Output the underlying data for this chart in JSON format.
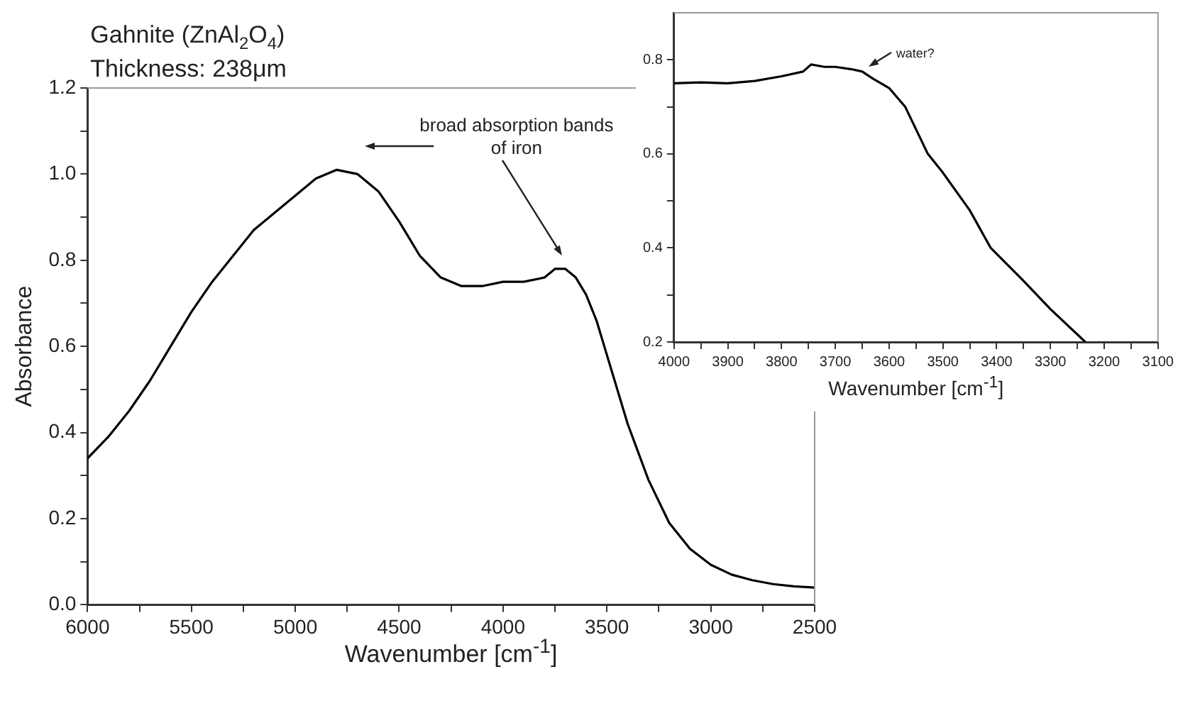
{
  "chart_data": [
    {
      "type": "line",
      "title": "Gahnite (ZnAl$_{2}$O$_{4}$)",
      "subtitle": "Thickness: 238μm",
      "xlabel": "Wavenumber [cm$^{-1}$]",
      "ylabel": "Absorbance",
      "annotations": [
        "broad absorption bands of iron"
      ],
      "x": [
        6000,
        5900,
        5800,
        5700,
        5600,
        5500,
        5400,
        5300,
        5200,
        5100,
        5000,
        4900,
        4800,
        4700,
        4600,
        4500,
        4400,
        4300,
        4200,
        4100,
        4000,
        3900,
        3800,
        3750,
        3700,
        3650,
        3600,
        3550,
        3500,
        3400,
        3300,
        3200,
        3100,
        3000,
        2900,
        2800,
        2700,
        2600,
        2500
      ],
      "series": [
        {
          "color": "#000000",
          "values": [
            0.34,
            0.39,
            0.45,
            0.52,
            0.6,
            0.68,
            0.75,
            0.81,
            0.87,
            0.91,
            0.95,
            0.99,
            1.01,
            1.0,
            0.96,
            0.89,
            0.81,
            0.76,
            0.74,
            0.74,
            0.75,
            0.75,
            0.76,
            0.78,
            0.78,
            0.76,
            0.72,
            0.66,
            0.58,
            0.42,
            0.29,
            0.19,
            0.13,
            0.093,
            0.07,
            0.057,
            0.048,
            0.043,
            0.04
          ]
        }
      ],
      "xlim": [
        6000,
        2500
      ],
      "ylim": [
        0,
        1.2
      ],
      "xticks": [
        6000,
        {
          "value": 5750,
          "label": null
        },
        5500,
        {
          "value": 5250,
          "label": null
        },
        5000,
        {
          "value": 4750,
          "label": null
        },
        4500,
        {
          "value": 4250,
          "label": null
        },
        4000,
        {
          "value": 3750,
          "label": null
        },
        3500,
        {
          "value": 3250,
          "label": null
        },
        3000,
        {
          "value": 2750,
          "label": null
        },
        2500
      ],
      "yticks": [
        {
          "value": 0,
          "label": "0.0"
        },
        {
          "value": 0.1,
          "label": null
        },
        0.2,
        {
          "value": 0.3,
          "label": null
        },
        0.4,
        {
          "value": 0.5,
          "label": null
        },
        0.6,
        {
          "value": 0.7,
          "label": null
        },
        0.8,
        {
          "value": 0.9,
          "label": null
        },
        {
          "value": 1,
          "label": "1.0"
        },
        {
          "value": 1.1,
          "label": null
        },
        1.2
      ],
      "grid": false,
      "legend": false,
      "marker": "none",
      "line_style": "solid"
    },
    {
      "type": "line",
      "xlabel": "Wavenumber [cm$^{-1}$]",
      "annotations": [
        {
          "text": "water?",
          "x": 3645,
          "y": 0.775
        }
      ],
      "x": [
        4000,
        3950,
        3900,
        3850,
        3800,
        3760,
        3745,
        3720,
        3700,
        3670,
        3650,
        3630,
        3600,
        3570,
        3528,
        3500,
        3450,
        3411,
        3350,
        3300,
        3235
      ],
      "series": [
        {
          "color": "#000000",
          "values": [
            0.75,
            0.752,
            0.75,
            0.755,
            0.765,
            0.775,
            0.79,
            0.785,
            0.785,
            0.78,
            0.775,
            0.76,
            0.74,
            0.7,
            0.6,
            0.56,
            0.48,
            0.4,
            0.33,
            0.27,
            0.2
          ]
        }
      ],
      "xlim": [
        4000,
        3100
      ],
      "ylim": [
        0.2,
        0.9
      ],
      "xticks": [
        4000,
        {
          "value": 3950,
          "label": null
        },
        3900,
        {
          "value": 3850,
          "label": null
        },
        3800,
        {
          "value": 3750,
          "label": null
        },
        3700,
        {
          "value": 3650,
          "label": null
        },
        3600,
        {
          "value": 3550,
          "label": null
        },
        3500,
        {
          "value": 3450,
          "label": null
        },
        3400,
        {
          "value": 3350,
          "label": null
        },
        3300,
        {
          "value": 3250,
          "label": null
        },
        3200,
        {
          "value": 3150,
          "label": null
        },
        3100
      ],
      "yticks": [
        0.2,
        {
          "value": 0.3,
          "label": null
        },
        0.4,
        {
          "value": 0.5,
          "label": null
        },
        0.6,
        {
          "value": 0.7,
          "label": null
        },
        0.8
      ],
      "grid": false,
      "legend": false,
      "marker": "none",
      "line_style": "solid"
    }
  ]
}
